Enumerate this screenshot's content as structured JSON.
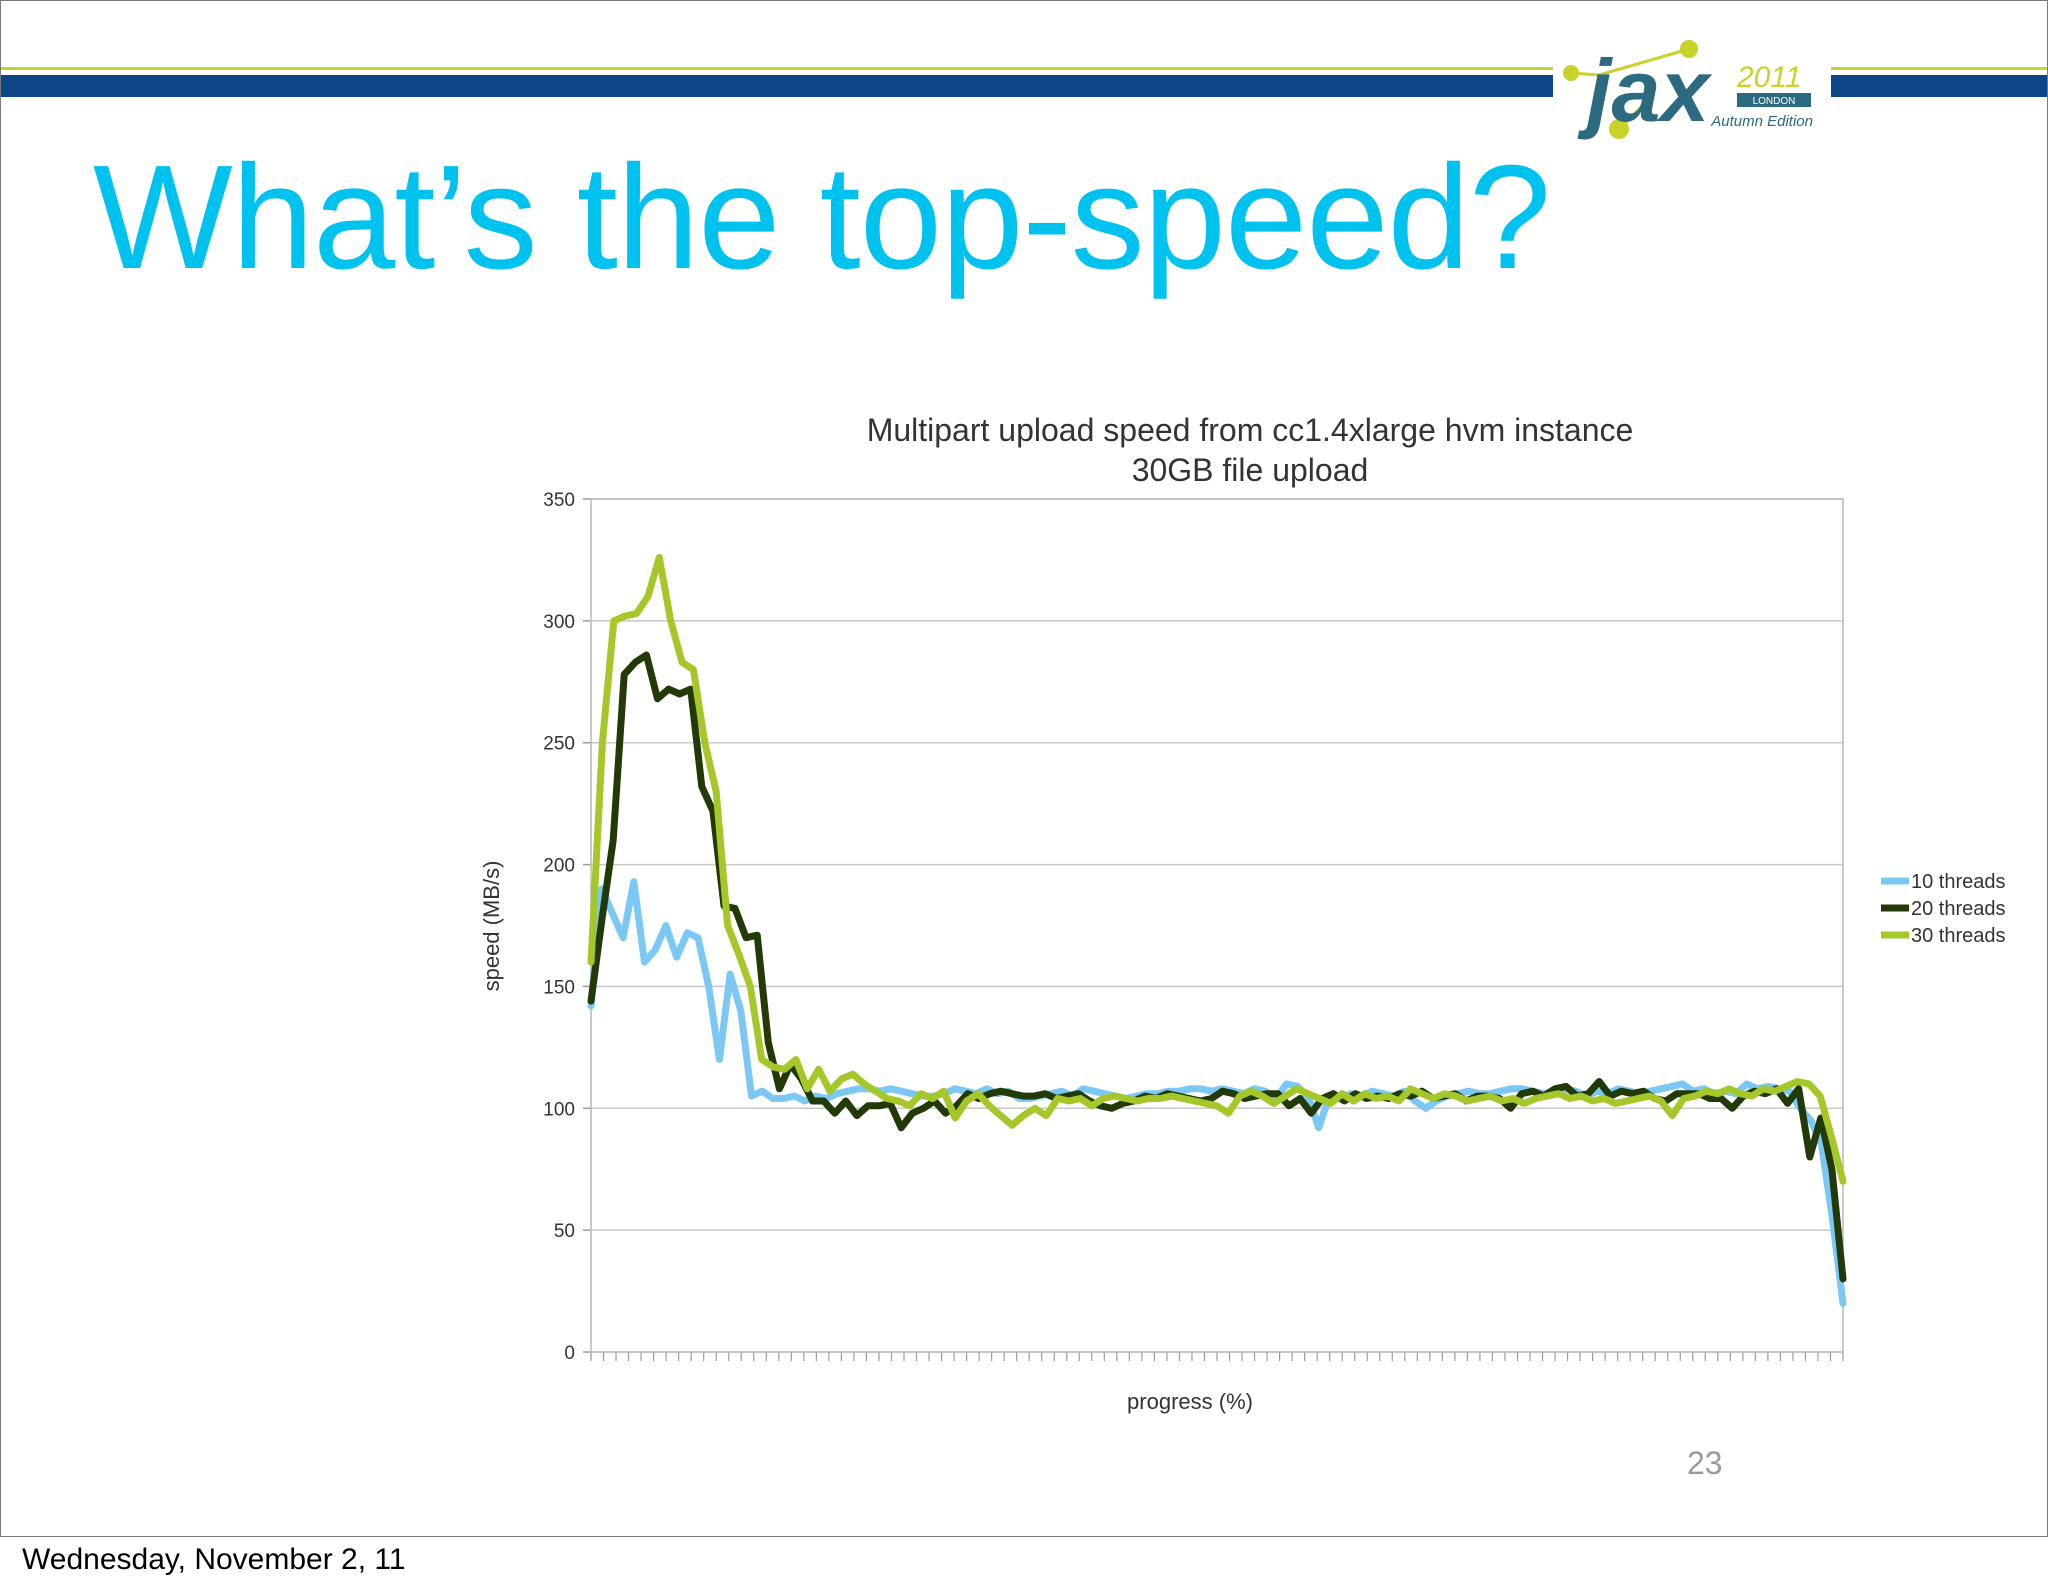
{
  "slide": {
    "title": "What’s the top-speed?",
    "page_number": "23",
    "footer_date": "Wednesday, November 2, 11",
    "colors": {
      "title": "#00c2ef",
      "header_bar": "#0d4687",
      "header_line": "#c7d22f",
      "logo_text": "#2c6a7f",
      "logo_dots": "#c8d228"
    }
  },
  "logo": {
    "name": "jax",
    "year": "2011",
    "city": "LONDON",
    "edition": "Autumn Edition"
  },
  "chart_data": {
    "type": "line",
    "title": "Multipart upload speed from cc1.4xlarge hvm instance",
    "subtitle": "30GB file upload",
    "xlabel": "progress (%)",
    "ylabel": "speed (MB/s)",
    "ylim": [
      0,
      350
    ],
    "yticks": [
      0,
      50,
      100,
      150,
      200,
      250,
      300,
      350
    ],
    "xlim": [
      0,
      100
    ],
    "grid": true,
    "legend_position": "right",
    "series": [
      {
        "name": "10 threads",
        "color": "#7cc8f4",
        "values": [
          142,
          190,
          180,
          170,
          193,
          160,
          165,
          175,
          162,
          172,
          170,
          150,
          120,
          155,
          140,
          105,
          107,
          104,
          104,
          105,
          103,
          105,
          104,
          106,
          107,
          108,
          108,
          107,
          108,
          107,
          106,
          105,
          105,
          106,
          108,
          107,
          106,
          108,
          106,
          107,
          104,
          104,
          105,
          106,
          107,
          105,
          108,
          107,
          106,
          105,
          104,
          105,
          106,
          106,
          107,
          107,
          108,
          108,
          107,
          108,
          107,
          106,
          108,
          107,
          104,
          110,
          109,
          105,
          92,
          105,
          104,
          106,
          105,
          107,
          106,
          105,
          107,
          103,
          100,
          103,
          105,
          106,
          107,
          106,
          106,
          107,
          108,
          108,
          107,
          106,
          107,
          108,
          107,
          105,
          107,
          106,
          108,
          107,
          106,
          107,
          108,
          109,
          110,
          107,
          108,
          106,
          107,
          106,
          110,
          108,
          109,
          108,
          107,
          100,
          95,
          85,
          55,
          20
        ]
      },
      {
        "name": "20 threads",
        "color": "#223a08",
        "values": [
          144,
          178,
          210,
          278,
          283,
          286,
          268,
          272,
          270,
          272,
          232,
          222,
          183,
          182,
          170,
          171,
          127,
          108,
          118,
          112,
          103,
          103,
          98,
          103,
          97,
          101,
          101,
          102,
          92,
          98,
          100,
          103,
          98,
          101,
          106,
          104,
          106,
          107,
          106,
          105,
          105,
          106,
          104,
          105,
          106,
          103,
          101,
          100,
          102,
          103,
          105,
          104,
          106,
          105,
          104,
          103,
          104,
          107,
          106,
          104,
          105,
          106,
          106,
          101,
          104,
          98,
          104,
          106,
          103,
          106,
          104,
          105,
          104,
          106,
          105,
          107,
          104,
          105,
          106,
          103,
          105,
          105,
          104,
          100,
          106,
          107,
          105,
          108,
          109,
          105,
          106,
          111,
          105,
          107,
          106,
          107,
          104,
          103,
          106,
          106,
          106,
          104,
          104,
          100,
          105,
          107,
          106,
          108,
          102,
          108,
          80,
          96,
          75,
          30
        ]
      },
      {
        "name": "30 threads",
        "color": "#a6c72a",
        "values": [
          160,
          250,
          300,
          302,
          303,
          310,
          326,
          300,
          283,
          280,
          250,
          230,
          175,
          163,
          150,
          120,
          117,
          116,
          120,
          108,
          116,
          107,
          112,
          114,
          110,
          107,
          104,
          103,
          101,
          106,
          104,
          107,
          96,
          103,
          106,
          101,
          97,
          93,
          97,
          100,
          97,
          104,
          103,
          104,
          101,
          104,
          105,
          104,
          103,
          104,
          104,
          105,
          104,
          103,
          102,
          101,
          98,
          105,
          107,
          105,
          102,
          105,
          108,
          106,
          104,
          102,
          106,
          103,
          106,
          104,
          105,
          103,
          108,
          106,
          104,
          106,
          105,
          103,
          104,
          105,
          103,
          104,
          102,
          104,
          105,
          106,
          104,
          105,
          103,
          104,
          102,
          103,
          104,
          105,
          103,
          97,
          104,
          105,
          107,
          106,
          108,
          106,
          105,
          108,
          107,
          109,
          111,
          110,
          105,
          88,
          70
        ]
      }
    ]
  }
}
